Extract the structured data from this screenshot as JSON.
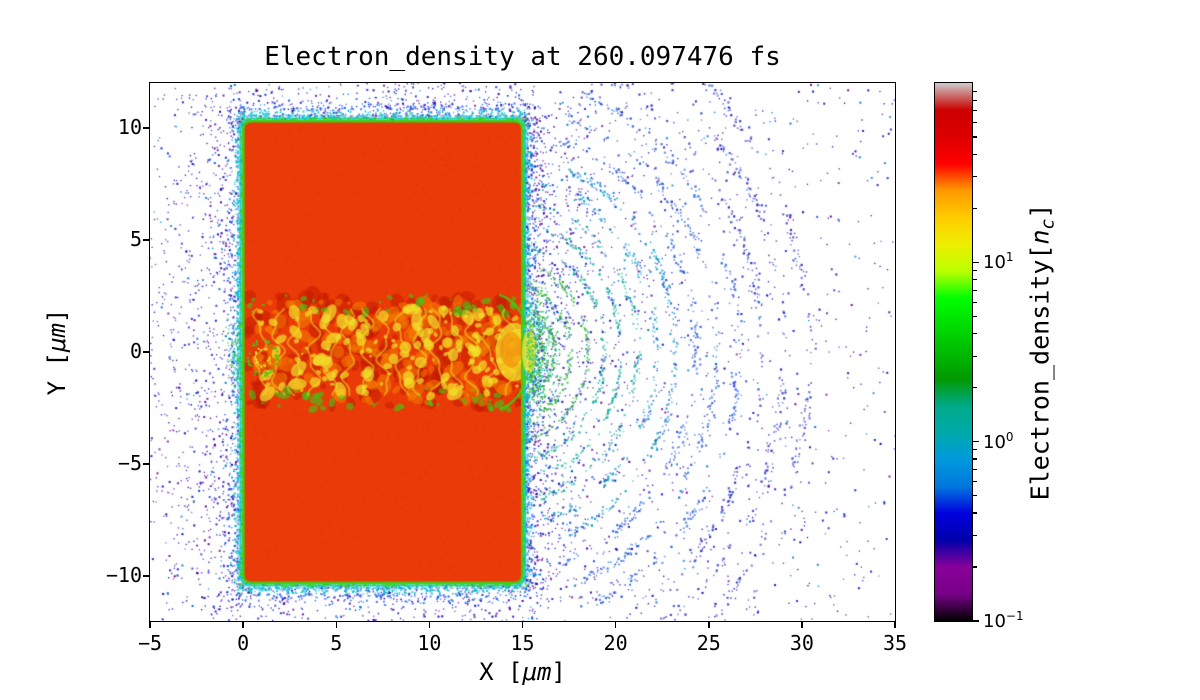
{
  "chart_data": {
    "type": "heatmap",
    "title": "Electron_density at 260.097476 fs",
    "xlabel": {
      "pre": "X [",
      "unit": "μm",
      "post": "]"
    },
    "ylabel": {
      "pre": "Y [",
      "unit": "μm",
      "post": "]"
    },
    "xlim": [
      -5,
      35
    ],
    "ylim": [
      -12,
      12
    ],
    "grid": false,
    "xticks": [
      {
        "v": -5,
        "label": "−5"
      },
      {
        "v": 0,
        "label": "0"
      },
      {
        "v": 5,
        "label": "5"
      },
      {
        "v": 10,
        "label": "10"
      },
      {
        "v": 15,
        "label": "15"
      },
      {
        "v": 20,
        "label": "20"
      },
      {
        "v": 25,
        "label": "25"
      },
      {
        "v": 30,
        "label": "30"
      },
      {
        "v": 35,
        "label": "35"
      }
    ],
    "yticks": [
      {
        "v": -10,
        "label": "−10"
      },
      {
        "v": -5,
        "label": "−5"
      },
      {
        "v": 0,
        "label": "0"
      },
      {
        "v": 5,
        "label": "5"
      },
      {
        "v": 10,
        "label": "10"
      }
    ],
    "colorbar": {
      "label": {
        "pre": "Electron_density[",
        "var": "n",
        "sub": "c",
        "post": "]"
      },
      "scale": "log",
      "vmin": 0.1,
      "vmax": 100,
      "colormap": "nipy_spectral",
      "ticks": [
        {
          "pos": 0.0,
          "base": "10",
          "exp": "−1"
        },
        {
          "pos": 0.3333,
          "base": "10",
          "exp": "0"
        },
        {
          "pos": 0.6667,
          "base": "10",
          "exp": "1"
        }
      ],
      "stops": [
        {
          "p": 0.0,
          "c": "#000000"
        },
        {
          "p": 0.05,
          "c": "#770088"
        },
        {
          "p": 0.1,
          "c": "#880099"
        },
        {
          "p": 0.15,
          "c": "#0000AA"
        },
        {
          "p": 0.2,
          "c": "#0000DD"
        },
        {
          "p": 0.25,
          "c": "#0077DD"
        },
        {
          "p": 0.3,
          "c": "#0099DD"
        },
        {
          "p": 0.35,
          "c": "#00AAAA"
        },
        {
          "p": 0.4,
          "c": "#00AA88"
        },
        {
          "p": 0.45,
          "c": "#009900"
        },
        {
          "p": 0.5,
          "c": "#00BB00"
        },
        {
          "p": 0.55,
          "c": "#00DD00"
        },
        {
          "p": 0.6,
          "c": "#00FF00"
        },
        {
          "p": 0.65,
          "c": "#BBFF00"
        },
        {
          "p": 0.7,
          "c": "#EEEE00"
        },
        {
          "p": 0.75,
          "c": "#FFCC00"
        },
        {
          "p": 0.8,
          "c": "#FF9900"
        },
        {
          "p": 0.85,
          "c": "#FF0000"
        },
        {
          "p": 0.9,
          "c": "#DD0000"
        },
        {
          "p": 0.95,
          "c": "#CC0000"
        },
        {
          "p": 1.0,
          "c": "#CCCCCC"
        }
      ]
    },
    "features": {
      "plasma_slab": {
        "x_um": [
          0,
          15
        ],
        "y_um": [
          -10.3,
          10.3
        ],
        "appearance": "solid overcritical plasma block, red (~20–40 nc)"
      },
      "laser_channel": {
        "x_um": [
          0,
          15.2
        ],
        "y_um": [
          -2.5,
          2.5
        ],
        "appearance": "turbulent filamented channel bored through the slab; red/orange/yellow with green filaments and a vortex near the entrance"
      },
      "channel_exit_plume": {
        "center_um": [
          15.4,
          0
        ],
        "appearance": "yellow-green density bloom at the right-hand channel exit"
      },
      "wavefronts": {
        "center_um": [
          14.6,
          0
        ],
        "radii_um": [
          2.1,
          3.0,
          3.9,
          4.8,
          5.7,
          6.6,
          7.6,
          8.6,
          9.7,
          10.8,
          12.0,
          13.2,
          14.5,
          15.8
        ],
        "appearance": "concentric expanding arcs of ejected electrons, green→cyan→blue with radius (~0.3–3 nc)"
      },
      "electron_halo": {
        "appearance": "sparse dark-blue/purple speckle of low-density electrons (~0.1–0.5 nc) surrounding the target"
      }
    },
    "render": {
      "seed": 7,
      "slab": {
        "x": [
          0,
          15
        ],
        "y": [
          -10.3,
          10.3
        ],
        "fill": "#ea3a08",
        "corner_um": 0.45,
        "edge_green": "#3ecf12",
        "edge_cyan": "#00c9c4",
        "edge_blue": "#1f63e8"
      },
      "channel": {
        "x": [
          0.15,
          15.25
        ],
        "half_width_um": 2.55,
        "colors": {
          "dark_red": "#c21800",
          "orange": "#f57d00",
          "yellow": "#f2e32b",
          "green": "#3fc814",
          "cyan": "#19c8b4"
        }
      },
      "arcs": {
        "center": [
          14.6,
          0
        ],
        "radii": [
          2.1,
          3.0,
          3.9,
          4.8,
          5.7,
          6.6,
          7.6,
          8.6,
          9.7,
          10.8,
          12.0,
          13.2,
          14.5,
          15.8
        ],
        "colors": [
          "#1fb432",
          "#00ae96",
          "#0092c8",
          "#2160d8",
          "#2b28b8"
        ]
      },
      "left_arcs": {
        "center": [
          0.2,
          0
        ],
        "radii": [
          4.0,
          5.2,
          6.4,
          7.6
        ]
      },
      "halo": {
        "count": 5200,
        "colors": [
          "#1c00a0",
          "#2a00b4",
          "#0016c8",
          "#3c00a8",
          "#0a30d2",
          "#6a008c",
          "#0078d2"
        ]
      },
      "edge_fuzz_count": 2200,
      "slab_noise_count": 2600
    }
  }
}
